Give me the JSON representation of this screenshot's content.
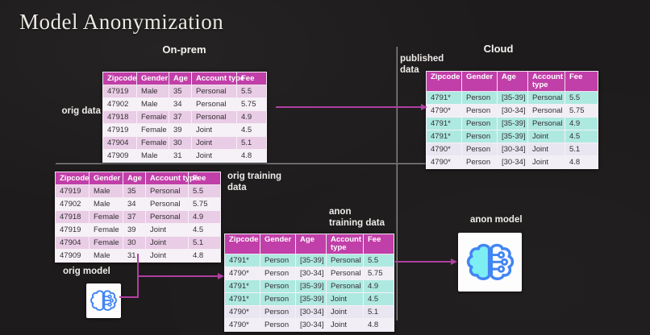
{
  "title": "Model Anonymization",
  "headings": {
    "onprem": "On-prem",
    "cloud": "Cloud"
  },
  "labels": {
    "orig_data": "orig data",
    "published_data": "published\ndata",
    "orig_training_data": "orig training\ndata",
    "anon_training_data": "anon\ntraining data",
    "orig_model": "orig model",
    "anon_model": "anon model"
  },
  "tables": {
    "orig": {
      "columns": [
        "Zipcode",
        "Gender",
        "Age",
        "Account type",
        "Fee"
      ],
      "rows": [
        [
          "47919",
          "Male",
          "35",
          "Personal",
          "5.5"
        ],
        [
          "47902",
          "Male",
          "34",
          "Personal",
          "5.75"
        ],
        [
          "47918",
          "Female",
          "37",
          "Personal",
          "4.9"
        ],
        [
          "47919",
          "Female",
          "39",
          "Joint",
          "4.5"
        ],
        [
          "47904",
          "Female",
          "30",
          "Joint",
          "5.1"
        ],
        [
          "47909",
          "Male",
          "31",
          "Joint",
          "4.8"
        ]
      ],
      "row_styles": [
        "pink",
        "white",
        "pink",
        "white",
        "pink",
        "white"
      ]
    },
    "anon": {
      "columns": [
        "Zipcode",
        "Gender",
        "Age",
        "Account type",
        "Fee"
      ],
      "rows": [
        [
          "4791*",
          "Person",
          "[35-39]",
          "Personal",
          "5.5"
        ],
        [
          "4790*",
          "Person",
          "[30-34]",
          "Personal",
          "5.75"
        ],
        [
          "4791*",
          "Person",
          "[35-39]",
          "Personal",
          "4.9"
        ],
        [
          "4791*",
          "Person",
          "[35-39]",
          "Joint",
          "4.5"
        ],
        [
          "4790*",
          "Person",
          "[30-34]",
          "Joint",
          "5.1"
        ],
        [
          "4790*",
          "Person",
          "[30-34]",
          "Joint",
          "4.8"
        ]
      ],
      "row_styles": [
        "teal",
        "lavwhite",
        "teal",
        "teal",
        "lav",
        "lavwhite"
      ]
    }
  },
  "icons": {
    "orig_model": "brain-circuit-icon",
    "anon_model": "brain-circuit-icon"
  },
  "colors": {
    "background": "#1d1b1b",
    "header_magenta": "#c13fa8",
    "row_pink": "#e9cce5",
    "row_white": "#f6f1f7",
    "row_teal": "#aee9e1",
    "row_lavender": "#e9e5f1",
    "row_lavender_white": "#f1eef6",
    "arrow_magenta": "#b03fa2",
    "divider_gray": "#8f8f8f",
    "icon_blue": "#4285f4",
    "icon_cyan_fill": "#7deef2",
    "text_dark": "#332f33",
    "text_light": "#f2efec"
  }
}
